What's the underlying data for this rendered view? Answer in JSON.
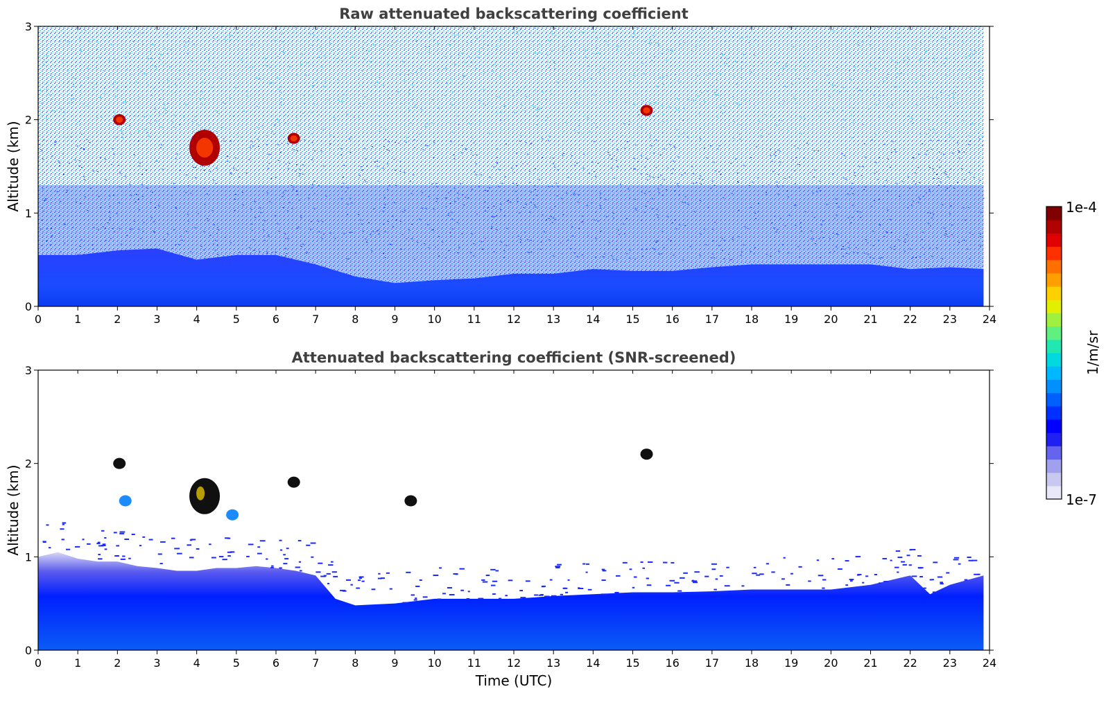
{
  "chart_data": [
    {
      "type": "heatmap",
      "title": "Raw attenuated backscattering coefficient",
      "xlabel": "",
      "ylabel": "Altitude (km)",
      "xlim": [
        0,
        24
      ],
      "ylim": [
        0,
        3
      ],
      "x_ticks": [
        "0",
        "1",
        "2",
        "3",
        "4",
        "5",
        "6",
        "7",
        "8",
        "9",
        "10",
        "11",
        "12",
        "13",
        "14",
        "15",
        "16",
        "17",
        "18",
        "19",
        "20",
        "21",
        "22",
        "23",
        "24"
      ],
      "y_ticks": [
        "0",
        "1",
        "2",
        "3"
      ],
      "grid": false,
      "boundary_layer_top_km": [
        [
          0,
          0.55
        ],
        [
          1,
          0.55
        ],
        [
          2,
          0.6
        ],
        [
          3,
          0.62
        ],
        [
          4,
          0.5
        ],
        [
          5,
          0.55
        ],
        [
          6,
          0.55
        ],
        [
          7,
          0.45
        ],
        [
          8,
          0.32
        ],
        [
          9,
          0.25
        ],
        [
          10,
          0.28
        ],
        [
          11,
          0.3
        ],
        [
          12,
          0.35
        ],
        [
          13,
          0.35
        ],
        [
          14,
          0.4
        ],
        [
          15,
          0.38
        ],
        [
          16,
          0.38
        ],
        [
          17,
          0.42
        ],
        [
          18,
          0.45
        ],
        [
          19,
          0.45
        ],
        [
          20,
          0.45
        ],
        [
          21,
          0.45
        ],
        [
          22,
          0.4
        ],
        [
          23,
          0.42
        ],
        [
          23.85,
          0.4
        ]
      ],
      "cloud_features": [
        {
          "time": 2.05,
          "alt_km": 2.0,
          "level": "high"
        },
        {
          "time": 4.2,
          "alt_km": 1.7,
          "level": "high"
        },
        {
          "time": 6.45,
          "alt_km": 1.8,
          "level": "high"
        },
        {
          "time": 15.35,
          "alt_km": 2.1,
          "level": "high"
        }
      ],
      "data_end_time": 23.85
    },
    {
      "type": "heatmap",
      "title": "Attenuated backscattering coefficient (SNR-screened)",
      "xlabel": "Time (UTC)",
      "ylabel": "Altitude (km)",
      "xlim": [
        0,
        24
      ],
      "ylim": [
        0,
        3
      ],
      "x_ticks": [
        "0",
        "1",
        "2",
        "3",
        "4",
        "5",
        "6",
        "7",
        "8",
        "9",
        "10",
        "11",
        "12",
        "13",
        "14",
        "15",
        "16",
        "17",
        "18",
        "19",
        "20",
        "21",
        "22",
        "23",
        "24"
      ],
      "y_ticks": [
        "0",
        "1",
        "2",
        "3"
      ],
      "grid": false,
      "boundary_layer_top_km": [
        [
          0,
          1.0
        ],
        [
          0.5,
          1.05
        ],
        [
          1,
          0.98
        ],
        [
          1.5,
          0.95
        ],
        [
          2,
          0.95
        ],
        [
          2.5,
          0.9
        ],
        [
          3,
          0.88
        ],
        [
          3.5,
          0.85
        ],
        [
          4,
          0.85
        ],
        [
          4.5,
          0.88
        ],
        [
          5,
          0.88
        ],
        [
          5.5,
          0.9
        ],
        [
          6,
          0.88
        ],
        [
          6.5,
          0.85
        ],
        [
          7,
          0.8
        ],
        [
          7.3,
          0.65
        ],
        [
          7.5,
          0.55
        ],
        [
          8,
          0.48
        ],
        [
          9,
          0.5
        ],
        [
          10,
          0.55
        ],
        [
          11,
          0.55
        ],
        [
          12,
          0.55
        ],
        [
          13,
          0.58
        ],
        [
          14,
          0.6
        ],
        [
          15,
          0.62
        ],
        [
          16,
          0.62
        ],
        [
          17,
          0.63
        ],
        [
          18,
          0.65
        ],
        [
          19,
          0.65
        ],
        [
          20,
          0.65
        ],
        [
          21,
          0.7
        ],
        [
          22,
          0.8
        ],
        [
          22.5,
          0.6
        ],
        [
          23,
          0.7
        ],
        [
          23.85,
          0.8
        ]
      ],
      "cloud_features": [
        {
          "time": 2.05,
          "alt_km": 2.0,
          "level": "saturated"
        },
        {
          "time": 2.2,
          "alt_km": 1.6,
          "level": "mid"
        },
        {
          "time": 4.2,
          "alt_km": 1.65,
          "level": "saturated"
        },
        {
          "time": 4.9,
          "alt_km": 1.45,
          "level": "mid"
        },
        {
          "time": 6.45,
          "alt_km": 1.8,
          "level": "saturated"
        },
        {
          "time": 9.4,
          "alt_km": 1.6,
          "level": "saturated"
        },
        {
          "time": 15.35,
          "alt_km": 2.1,
          "level": "saturated"
        }
      ],
      "data_end_time": 23.85
    }
  ],
  "colorbar": {
    "label": "1/m/sr",
    "max_label": "1e-4",
    "min_label": "1e-7",
    "colors": [
      "#e8e8f8",
      "#c8c8f0",
      "#a0a0ee",
      "#6464ee",
      "#2020f0",
      "#0000ff",
      "#0030ff",
      "#0060ff",
      "#0090ff",
      "#00b8ff",
      "#00d8e0",
      "#20e8b0",
      "#60f080",
      "#a0f040",
      "#e0f000",
      "#ffd000",
      "#ffa000",
      "#ff7000",
      "#ff3000",
      "#e00000",
      "#b00000",
      "#800000"
    ]
  }
}
